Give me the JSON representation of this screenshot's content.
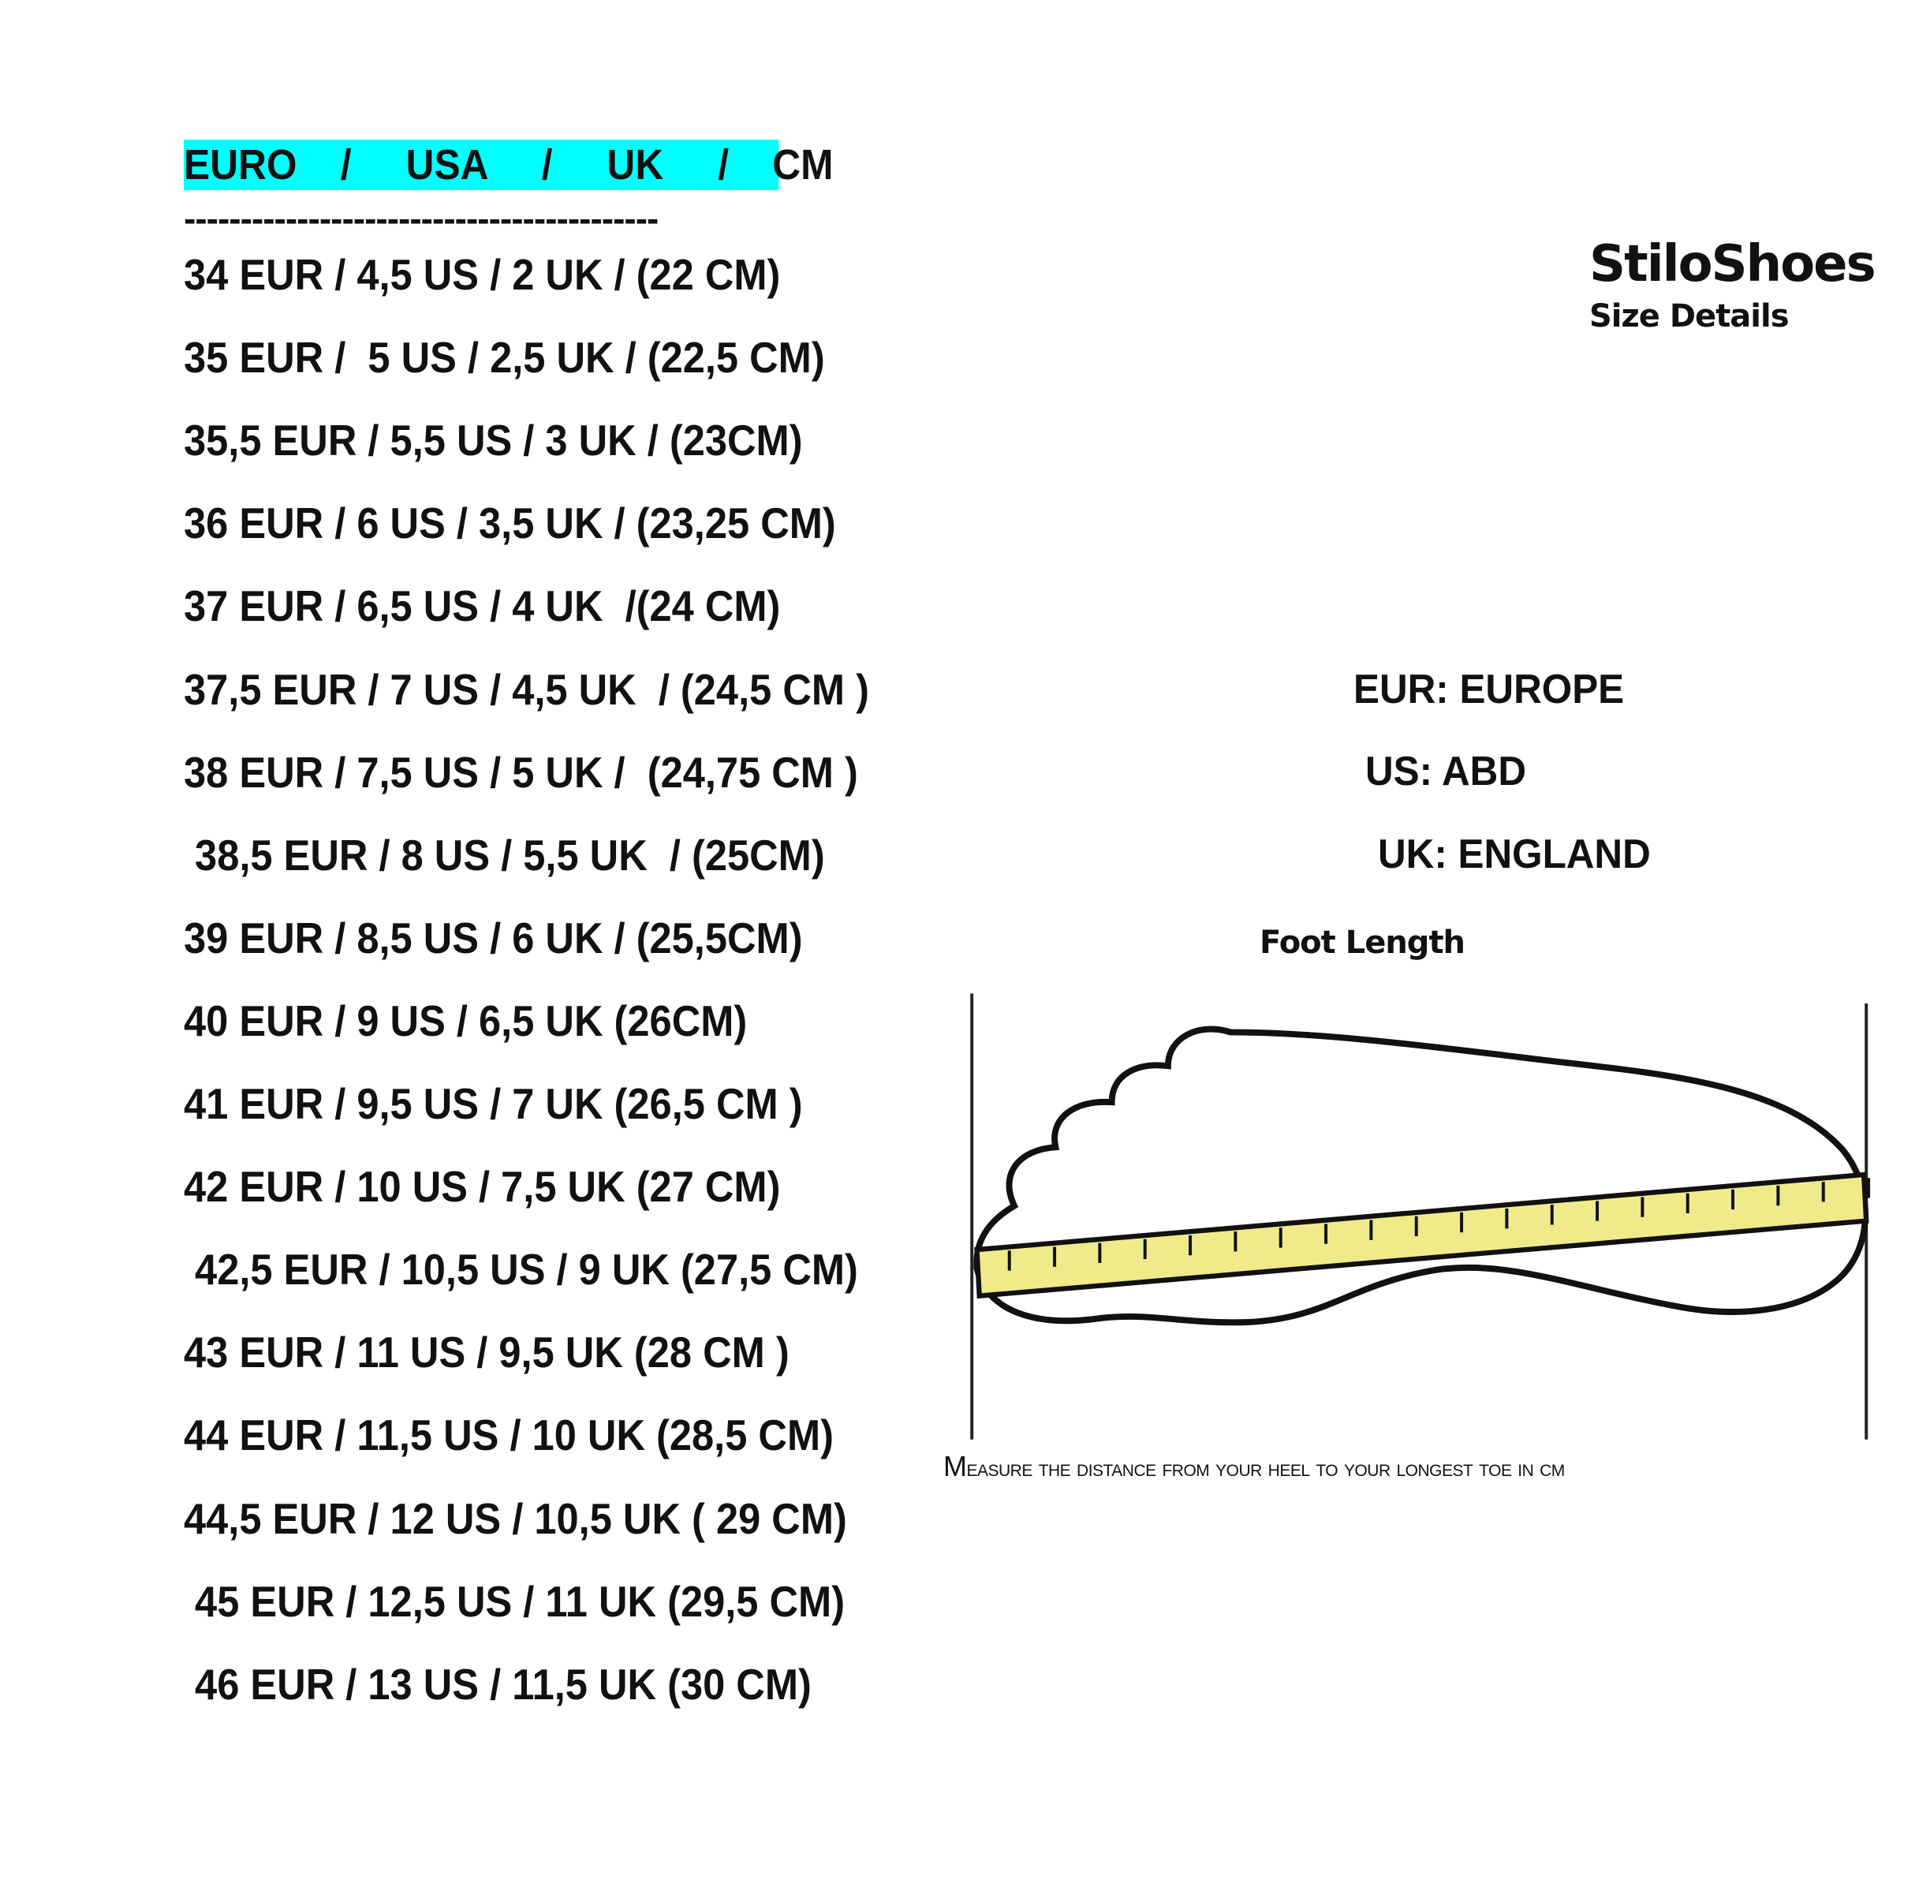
{
  "header": {
    "title": "EURO    /     USA     /     UK     /    CM",
    "divider": "------------------------------------------",
    "highlight_color": "#00ffff"
  },
  "sizes": [
    "34 EUR / 4,5 US / 2 UK / (22 CM)",
    "35 EUR /  5 US / 2,5 UK / (22,5 CM)",
    "35,5 EUR / 5,5 US / 3 UK / (23CM)",
    "36 EUR / 6 US / 3,5 UK / (23,25 CM)",
    "37 EUR / 6,5 US / 4 UK  /(24 CM)",
    "37,5 EUR / 7 US / 4,5 UK  / (24,5 CM )",
    "38 EUR / 7,5 US / 5 UK /  (24,75 CM )",
    " 38,5 EUR / 8 US / 5,5 UK  / (25CM)",
    "39 EUR / 8,5 US / 6 UK / (25,5CM)",
    "40 EUR / 9 US / 6,5 UK (26CM)",
    "41 EUR / 9,5 US / 7 UK (26,5 CM )",
    "42 EUR / 10 US / 7,5 UK (27 CM)",
    " 42,5 EUR / 10,5 US / 9 UK (27,5 CM)",
    "43 EUR / 11 US / 9,5 UK (28 CM )",
    "44 EUR / 11,5 US / 10 UK (28,5 CM)",
    "44,5 EUR / 12 US / 10,5 UK ( 29 CM)",
    " 45 EUR / 12,5 US / 11 UK (29,5 CM)",
    " 46 EUR / 13 US / 11,5 UK (30 CM)"
  ],
  "brand": {
    "name": "StiloShoes",
    "subtitle": "Size Details"
  },
  "legend": [
    "EUR: EUROPE",
    "US: ABD",
    "UK: ENGLAND"
  ],
  "diagram": {
    "title": "Foot Length",
    "caption": "Measure the distance from your heel to your longest toe in cm",
    "ruler_color": "#f0eb8a"
  }
}
